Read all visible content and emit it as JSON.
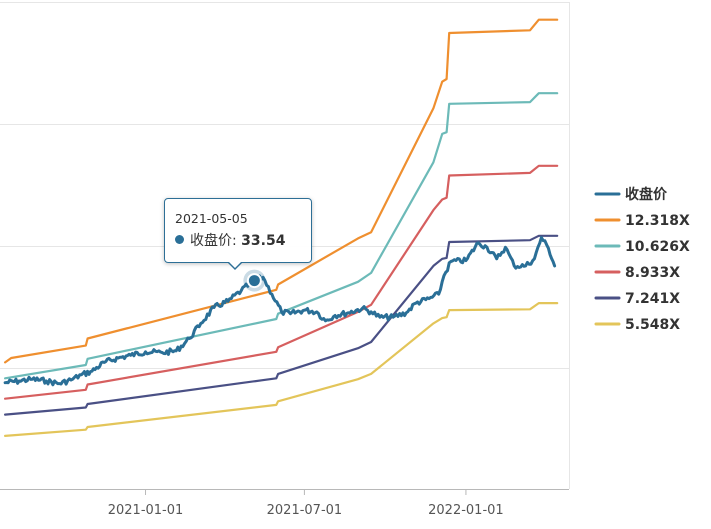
{
  "chart_data": {
    "type": "line",
    "x_ticks": [
      "2021-01-01",
      "2021-07-01",
      "2022-01-01"
    ],
    "y_gridlines": 4,
    "grid": true,
    "legend_position": "right",
    "series": [
      {
        "name": "收盘价",
        "color": "#2a6f97",
        "points": [
          [
            "2020-07-25",
            22.0
          ],
          [
            "2020-08-10",
            22.2
          ],
          [
            "2020-08-25",
            22.4
          ],
          [
            "2020-09-10",
            22.2
          ],
          [
            "2020-09-25",
            21.9
          ],
          [
            "2020-10-10",
            22.4
          ],
          [
            "2020-10-20",
            22.9
          ],
          [
            "2020-11-01",
            23.3
          ],
          [
            "2020-11-15",
            24.3
          ],
          [
            "2020-12-01",
            24.8
          ],
          [
            "2020-12-15",
            25.1
          ],
          [
            "2021-01-01",
            25.5
          ],
          [
            "2021-01-20",
            25.4
          ],
          [
            "2021-02-05",
            25.6
          ],
          [
            "2021-02-20",
            27.0
          ],
          [
            "2021-03-05",
            28.7
          ],
          [
            "2021-03-20",
            30.5
          ],
          [
            "2021-04-05",
            31.2
          ],
          [
            "2021-04-20",
            32.4
          ],
          [
            "2021-05-05",
            33.54
          ],
          [
            "2021-05-15",
            33.9
          ],
          [
            "2021-05-25",
            32.0
          ],
          [
            "2021-06-05",
            30.0
          ],
          [
            "2021-06-15",
            29.8
          ],
          [
            "2021-07-01",
            30.2
          ],
          [
            "2021-07-15",
            30.0
          ],
          [
            "2021-07-25",
            29.0
          ],
          [
            "2021-08-05",
            29.6
          ],
          [
            "2021-08-20",
            29.9
          ],
          [
            "2021-09-05",
            30.4
          ],
          [
            "2021-09-15",
            30.0
          ],
          [
            "2021-09-25",
            29.4
          ],
          [
            "2021-10-10",
            29.4
          ],
          [
            "2021-10-25",
            29.9
          ],
          [
            "2021-11-05",
            31.0
          ],
          [
            "2021-11-20",
            31.5
          ],
          [
            "2021-12-01",
            32.0
          ],
          [
            "2021-12-07",
            34.1
          ],
          [
            "2021-12-15",
            35.7
          ],
          [
            "2022-01-01",
            35.8
          ],
          [
            "2022-01-15",
            37.8
          ],
          [
            "2022-01-25",
            37.3
          ],
          [
            "2022-02-05",
            36.0
          ],
          [
            "2022-02-15",
            37.3
          ],
          [
            "2022-02-25",
            35.2
          ],
          [
            "2022-03-10",
            35.2
          ],
          [
            "2022-03-20",
            36.0
          ],
          [
            "2022-03-28",
            38.4
          ],
          [
            "2022-04-05",
            37.2
          ],
          [
            "2022-04-12",
            35.2
          ]
        ]
      },
      {
        "name": "12.318X",
        "color": "#ef8f2f",
        "points": [
          [
            "2020-07-25",
            24.3
          ],
          [
            "2020-08-01",
            24.8
          ],
          [
            "2020-10-25",
            26.2
          ],
          [
            "2020-10-27",
            27.0
          ],
          [
            "2021-05-30",
            32.5
          ],
          [
            "2021-06-01",
            33.1
          ],
          [
            "2021-08-31",
            38.3
          ],
          [
            "2021-09-15",
            39.0
          ],
          [
            "2021-11-25",
            53.0
          ],
          [
            "2021-12-05",
            56.0
          ],
          [
            "2021-12-10",
            56.3
          ],
          [
            "2021-12-13",
            61.5
          ],
          [
            "2022-03-15",
            61.8
          ],
          [
            "2022-03-25",
            63.0
          ],
          [
            "2022-04-15",
            63.0
          ]
        ]
      },
      {
        "name": "10.626X",
        "color": "#6cbab8",
        "points": [
          [
            "2020-07-25",
            22.5
          ],
          [
            "2020-10-25",
            24.0
          ],
          [
            "2020-10-27",
            24.7
          ],
          [
            "2021-05-30",
            29.2
          ],
          [
            "2021-06-01",
            29.8
          ],
          [
            "2021-08-31",
            33.4
          ],
          [
            "2021-09-15",
            34.4
          ],
          [
            "2021-11-25",
            46.9
          ],
          [
            "2021-12-05",
            50.1
          ],
          [
            "2021-12-10",
            50.3
          ],
          [
            "2021-12-13",
            53.5
          ],
          [
            "2022-03-15",
            53.7
          ],
          [
            "2022-03-25",
            54.7
          ],
          [
            "2022-04-15",
            54.7
          ]
        ]
      },
      {
        "name": "8.933X",
        "color": "#d65f5f",
        "points": [
          [
            "2020-07-25",
            20.2
          ],
          [
            "2020-10-25",
            21.2
          ],
          [
            "2020-10-27",
            21.8
          ],
          [
            "2021-05-30",
            25.5
          ],
          [
            "2021-06-01",
            26.0
          ],
          [
            "2021-08-31",
            30.0
          ],
          [
            "2021-09-15",
            30.8
          ],
          [
            "2021-11-25",
            41.5
          ],
          [
            "2021-12-05",
            42.7
          ],
          [
            "2021-12-10",
            42.9
          ],
          [
            "2021-12-13",
            45.4
          ],
          [
            "2022-03-15",
            45.7
          ],
          [
            "2022-03-25",
            46.5
          ],
          [
            "2022-04-15",
            46.5
          ]
        ]
      },
      {
        "name": "7.241X",
        "color": "#4a5085",
        "points": [
          [
            "2020-07-25",
            18.4
          ],
          [
            "2020-10-25",
            19.2
          ],
          [
            "2020-10-27",
            19.6
          ],
          [
            "2021-05-30",
            22.5
          ],
          [
            "2021-06-01",
            23.0
          ],
          [
            "2021-08-31",
            25.9
          ],
          [
            "2021-09-15",
            26.6
          ],
          [
            "2021-11-25",
            35.2
          ],
          [
            "2021-12-05",
            36.0
          ],
          [
            "2021-12-10",
            36.1
          ],
          [
            "2021-12-13",
            37.9
          ],
          [
            "2022-03-15",
            38.1
          ],
          [
            "2022-03-25",
            38.6
          ],
          [
            "2022-04-15",
            38.6
          ]
        ]
      },
      {
        "name": "5.548X",
        "color": "#e3c55a",
        "points": [
          [
            "2020-07-25",
            16.0
          ],
          [
            "2020-10-25",
            16.7
          ],
          [
            "2020-10-27",
            17.0
          ],
          [
            "2021-05-30",
            19.5
          ],
          [
            "2021-06-01",
            19.9
          ],
          [
            "2021-08-31",
            22.4
          ],
          [
            "2021-09-15",
            23.0
          ],
          [
            "2021-11-25",
            28.7
          ],
          [
            "2021-12-05",
            29.3
          ],
          [
            "2021-12-10",
            29.4
          ],
          [
            "2021-12-13",
            30.2
          ],
          [
            "2022-03-15",
            30.3
          ],
          [
            "2022-03-25",
            31.0
          ],
          [
            "2022-04-15",
            31.0
          ]
        ]
      }
    ]
  },
  "tooltip": {
    "date": "2021-05-05",
    "series_name": "收盘价",
    "separator": ": ",
    "value": "33.54",
    "x": "2021-05-05",
    "y": 33.54
  }
}
